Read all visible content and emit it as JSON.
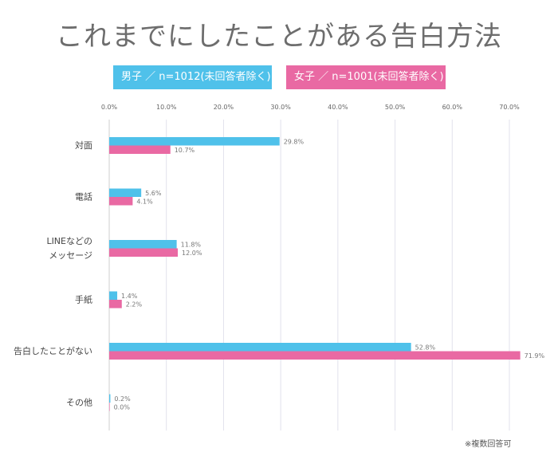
{
  "chart_data": {
    "type": "bar",
    "orientation": "horizontal",
    "title": "これまでにしたことがある告白方法",
    "categories": [
      "対面",
      "電話",
      "LINEなどの\nメッセージ",
      "手紙",
      "告白したことがない",
      "その他"
    ],
    "series": [
      {
        "name": "男子 ／ n=1012(未回答者除く)",
        "color": "#4fc1ea",
        "values": [
          29.8,
          5.6,
          11.8,
          1.4,
          52.8,
          0.2
        ],
        "labels": [
          "29.8%",
          "5.6%",
          "11.8%",
          "1.4%",
          "52.8%",
          "0.2%"
        ]
      },
      {
        "name": "女子 ／ n=1001(未回答者除く)",
        "color": "#e969a3",
        "values": [
          10.7,
          4.1,
          12.0,
          2.2,
          71.9,
          0.0
        ],
        "labels": [
          "10.7%",
          "4.1%",
          "12.0%",
          "2.2%",
          "71.9%",
          "0.0%"
        ]
      }
    ],
    "xlim": [
      0,
      70
    ],
    "ticks": [
      "0.0%",
      "10.0%",
      "20.0%",
      "30.0%",
      "40.0%",
      "50.0%",
      "60.0%",
      "70.0%"
    ],
    "grid": true,
    "legend_position": "top"
  },
  "note": "※複数回答可"
}
